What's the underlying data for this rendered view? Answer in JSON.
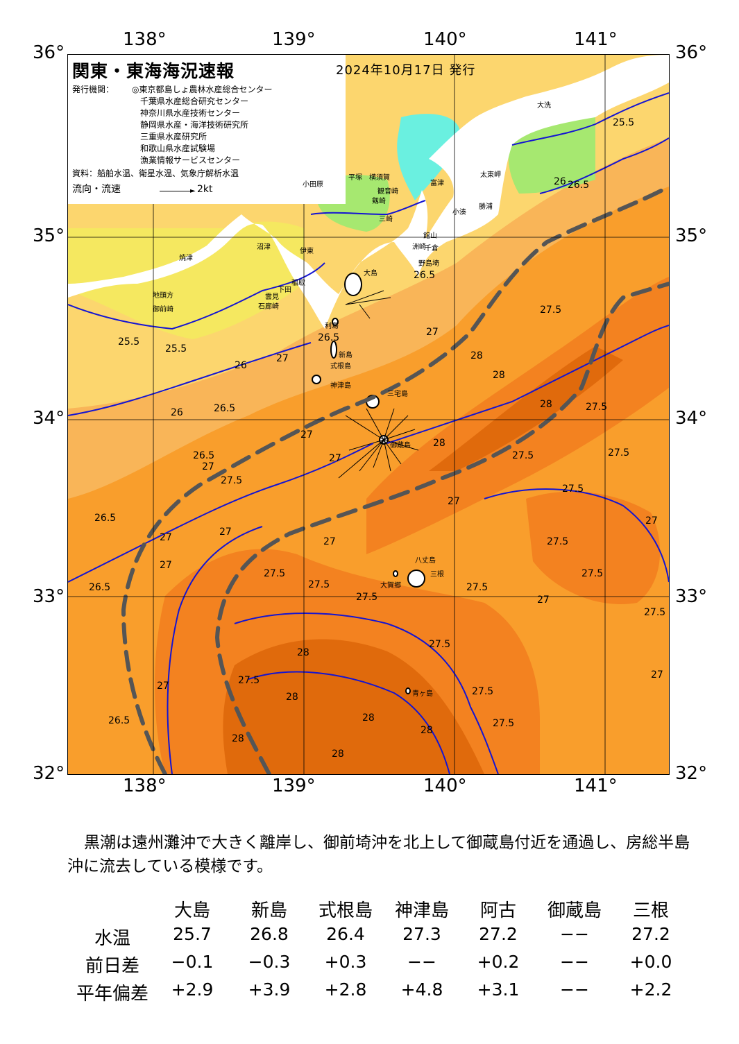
{
  "map": {
    "title": "関東・東海海況速報",
    "issue_date": "2024年10月17日 発行",
    "issuer_label": "発行機関：",
    "issuers": [
      "◎東京都島しょ農林水産総合センター",
      "千葉県水産総合研究センター",
      "神奈川県水産技術センター",
      "静岡県水産・海洋技術研究所",
      "三重県水産研究所",
      "和歌山県水産試験場",
      "漁業情報サービスセンター"
    ],
    "source": "資料：船舶水温、衛星水温、気象庁解析水温",
    "legend_label": "流向・流速",
    "legend_speed": "2kt",
    "lon_labels": [
      "138°",
      "139°",
      "140°",
      "141°"
    ],
    "lat_labels": [
      "36°",
      "35°",
      "34°",
      "33°",
      "32°"
    ],
    "contour_labels": [
      "25.5",
      "26",
      "26.5",
      "27",
      "27.5",
      "28"
    ],
    "place_names": [
      "大洗",
      "太東岬",
      "小湊",
      "勝浦",
      "野島埼",
      "洲崎",
      "館山",
      "千倉",
      "富津",
      "観音崎",
      "剱崎",
      "三崎",
      "平塚",
      "横須賀",
      "小田原",
      "伊東",
      "稲取",
      "下田",
      "石廊崎",
      "雲見",
      "沼津",
      "焼津",
      "御前崎",
      "地頭方",
      "大島",
      "利島",
      "新島",
      "式根島",
      "神津島",
      "三宅島",
      "御蔵島",
      "八丈島",
      "三根",
      "大賀郷",
      "青ヶ島"
    ],
    "colors": {
      "t25_5": "#f5e860",
      "t26": "#fcd66e",
      "t26_5": "#f9b558",
      "t27": "#f99e2c",
      "t27_5": "#f38220",
      "t28": "#e06a0c",
      "cold_green": "#a6e870",
      "cold_cyan": "#6af0e0",
      "kuroshio_path": "#555555",
      "contour_line": "#1414d2"
    }
  },
  "summary": "黒潮は遠州灘沖で大きく離岸し、御前埼沖を北上して御蔵島付近を通過し、房総半島沖に流去している模様です。",
  "stats": {
    "stations": [
      "大島",
      "新島",
      "式根島",
      "神津島",
      "阿古",
      "御蔵島",
      "三根"
    ],
    "rows": [
      {
        "label": "水温",
        "values": [
          "25.7",
          "26.8",
          "26.4",
          "27.3",
          "27.2",
          "−−",
          "27.2"
        ]
      },
      {
        "label": "前日差",
        "values": [
          "−0.1",
          "−0.3",
          "+0.3",
          "−−",
          "+0.2",
          "−−",
          "+0.0"
        ]
      },
      {
        "label": "平年偏差",
        "values": [
          "+2.9",
          "+3.9",
          "+2.8",
          "+4.8",
          "+3.1",
          "−−",
          "+2.2"
        ]
      }
    ]
  }
}
